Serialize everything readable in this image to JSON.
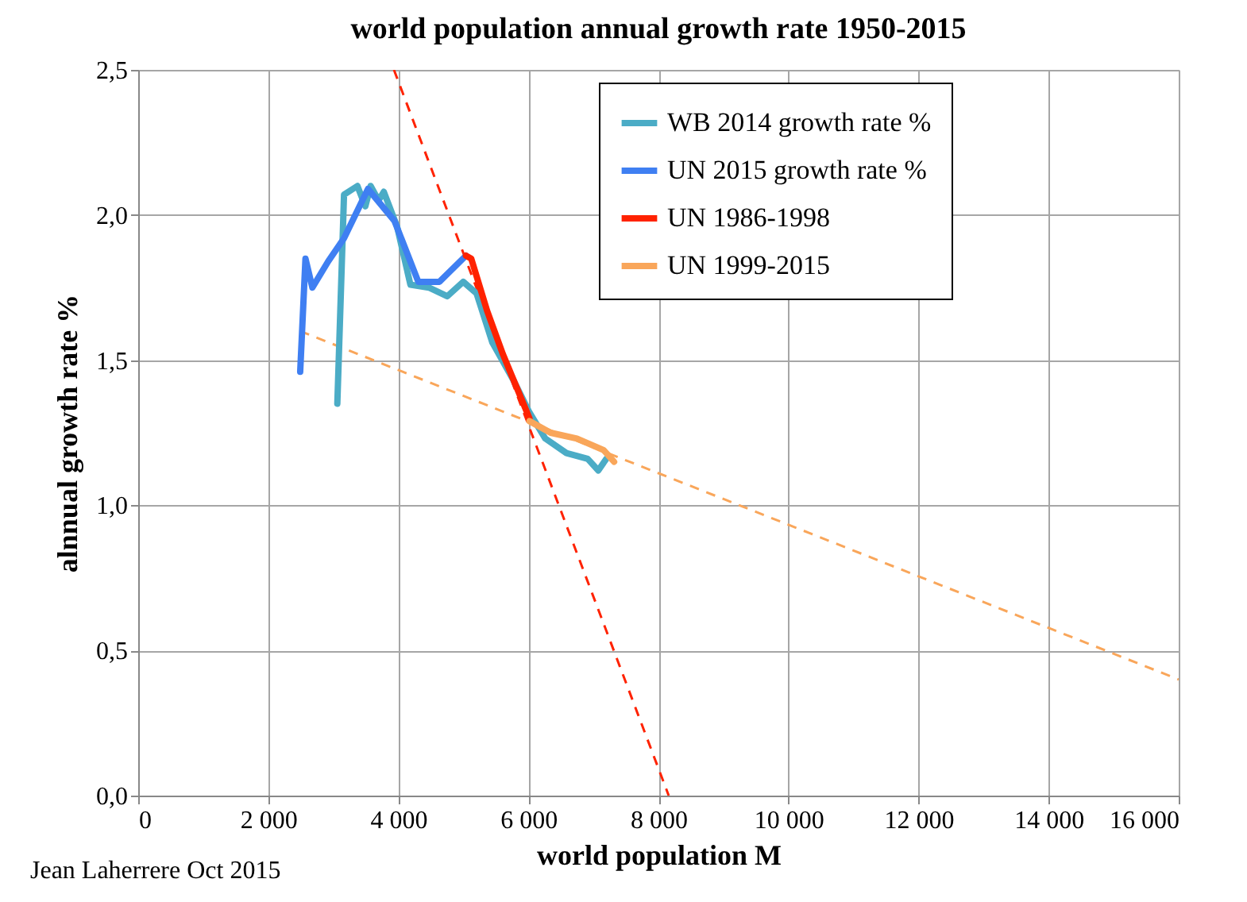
{
  "chart_data": {
    "type": "line",
    "title": "world population annual growth rate 1950-2015",
    "xlabel": "world population M",
    "ylabel": "alnnual growth rate %",
    "xlim": [
      0,
      16000
    ],
    "xticks": [
      0,
      {
        "value": 2000,
        "label": "2 000"
      },
      {
        "value": 4000,
        "label": "4 000"
      },
      {
        "value": 6000,
        "label": "6 000"
      },
      {
        "value": 8000,
        "label": "8 000"
      },
      {
        "value": 10000,
        "label": "10 000"
      },
      {
        "value": 12000,
        "label": "12 000"
      },
      {
        "value": 14000,
        "label": "14 000"
      },
      {
        "value": 16000,
        "label": "16 000"
      }
    ],
    "ylim": [
      0,
      2.5
    ],
    "yticks": [
      {
        "value": 0,
        "label": "0,0"
      },
      {
        "value": 0.5,
        "label": "0,5"
      },
      {
        "value": 1,
        "label": "1,0"
      },
      {
        "value": 1.5,
        "label": "1,5"
      },
      {
        "value": 2,
        "label": "2,0"
      },
      {
        "value": 2.5,
        "label": "2,5"
      }
    ],
    "grid": true,
    "legend": "top right",
    "annotations": [
      "Jean Laherrere Oct 2015"
    ],
    "series": [
      {
        "name": "WB 2014 growth rate %",
        "color": "#4bacc6",
        "x": [
          3062,
          3165,
          3371,
          3493,
          3574,
          3696,
          3777,
          3981,
          4186,
          4470,
          4753,
          4998,
          5203,
          5447,
          5773,
          6016,
          6260,
          6585,
          6912,
          7075,
          7197
        ],
        "values": [
          1.35,
          2.07,
          2.1,
          2.03,
          2.1,
          2.05,
          2.08,
          1.96,
          1.76,
          1.75,
          1.72,
          1.77,
          1.73,
          1.56,
          1.43,
          1.32,
          1.23,
          1.18,
          1.16,
          1.12,
          1.16
        ]
      },
      {
        "name": "UN 2015 growth rate %",
        "color": "#3f7ff2",
        "x": [
          2491,
          2572,
          2678,
          2921,
          3165,
          3533,
          3940,
          4307,
          4632,
          5040
        ],
        "values": [
          1.46,
          1.85,
          1.75,
          1.84,
          1.92,
          2.09,
          1.98,
          1.77,
          1.77,
          1.86
        ]
      },
      {
        "name": "UN 1986-1998",
        "color": "#ff2200",
        "x": [
          5040,
          5121,
          5365,
          5609,
          6016
        ],
        "values": [
          1.86,
          1.85,
          1.67,
          1.52,
          1.3
        ]
      },
      {
        "name": "UN 1999-2015",
        "color": "#f9a65a",
        "x": [
          6016,
          6341,
          6747,
          7157,
          7318
        ],
        "values": [
          1.29,
          1.25,
          1.23,
          1.19,
          1.15
        ]
      },
      {
        "type": "line",
        "line_style": "dashed",
        "color": "#ff2200",
        "x": [
          3933,
          8158
        ],
        "values": [
          2.5,
          0
        ]
      },
      {
        "type": "line",
        "line_style": "dashed",
        "color": "#f9a65a",
        "x": [
          2491,
          16000
        ],
        "values": [
          1.6,
          0.4
        ]
      }
    ]
  }
}
